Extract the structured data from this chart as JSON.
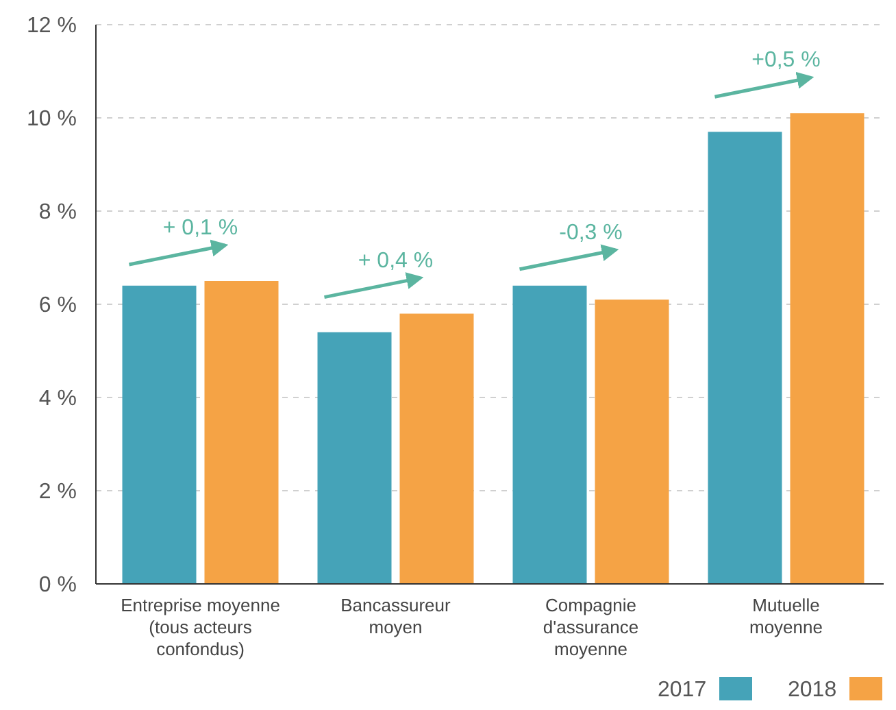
{
  "chart_data": {
    "type": "bar",
    "categories": [
      "Entreprise moyenne\n(tous acteurs\nconfondus)",
      "Bancassureur\nmoyen",
      "Compagnie\nd'assurance\nmoyenne",
      "Mutuelle\nmoyenne"
    ],
    "series": [
      {
        "name": "2017",
        "color": "#45a3b8",
        "values": [
          6.4,
          5.4,
          6.4,
          9.7
        ]
      },
      {
        "name": "2018",
        "color": "#f5a345",
        "values": [
          6.5,
          5.8,
          6.1,
          10.1
        ]
      }
    ],
    "ylim": [
      0,
      12
    ],
    "yticks": [
      {
        "value": 0,
        "label": "0 %"
      },
      {
        "value": 2,
        "label": "2 %"
      },
      {
        "value": 4,
        "label": "4 %"
      },
      {
        "value": 6,
        "label": "6 %"
      },
      {
        "value": 8,
        "label": "8 %"
      },
      {
        "value": 10,
        "label": "10 %"
      },
      {
        "value": 12,
        "label": "12 %"
      }
    ],
    "grid": "y",
    "legend": "bottom right",
    "annotations": [
      "+ 0,1 %",
      "+ 0,4 %",
      "-0,3 %",
      "+0,5 %"
    ]
  }
}
